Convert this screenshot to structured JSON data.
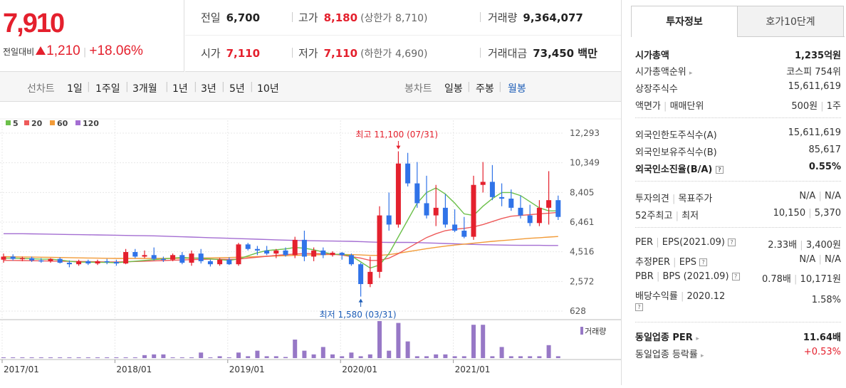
{
  "price": {
    "current": "7,910",
    "change_label": "전일대비",
    "change_abs": "1,210",
    "change_pct": "+18.06%"
  },
  "stats": {
    "prev_close": {
      "label": "전일",
      "value": "6,700"
    },
    "high": {
      "label": "고가",
      "value": "8,180",
      "limit_label": "(상한가",
      "limit_value": "8,710)"
    },
    "volume": {
      "label": "거래량",
      "value": "9,364,077"
    },
    "open": {
      "label": "시가",
      "value": "7,110"
    },
    "low": {
      "label": "저가",
      "value": "7,110",
      "limit_label": "(하한가",
      "limit_value": "4,690)"
    },
    "amount": {
      "label": "거래대금",
      "value": "73,450 백만"
    }
  },
  "periods": {
    "line_label": "선차트",
    "line_items": [
      "1일",
      "1주일",
      "3개월",
      "1년",
      "3년",
      "5년",
      "10년"
    ],
    "candle_label": "봉차트",
    "candle_items": [
      "일봉",
      "주봉",
      "월봉"
    ],
    "selected": "월봉"
  },
  "colors": {
    "up": "#e4202d",
    "down": "#3073e8",
    "volume": "#9778c6",
    "ma5": "#6cc04a",
    "ma20": "#ee5a5a",
    "ma60": "#f29b38",
    "ma120": "#a46ed2"
  },
  "chart_data": {
    "type": "candlestick",
    "legend": [
      {
        "name": "5",
        "color": "#6cc04a"
      },
      {
        "name": "20",
        "color": "#ee5a5a"
      },
      {
        "name": "60",
        "color": "#f29b38"
      },
      {
        "name": "120",
        "color": "#a46ed2"
      }
    ],
    "y_ticks": [
      "12,293",
      "10,349",
      "8,405",
      "6,461",
      "4,516",
      "2,572",
      "628"
    ],
    "y_range": [
      628,
      12293
    ],
    "x_ticks": [
      "2017/01",
      "2018/01",
      "2019/01",
      "2020/01",
      "2021/01"
    ],
    "x_tick_index": [
      0,
      12,
      24,
      36,
      48
    ],
    "annotations": {
      "high": "최고 11,100 (07/31)",
      "low": "최저 1,580 (03/31)"
    },
    "high_index": 42,
    "low_index": 38,
    "volume_label": "거래량",
    "candles": [
      [
        4000,
        4400,
        3800,
        4200
      ],
      [
        4200,
        4350,
        3950,
        4050
      ],
      [
        4050,
        4200,
        3900,
        4100
      ],
      [
        4100,
        4200,
        3850,
        3950
      ],
      [
        3950,
        4100,
        3800,
        3900
      ],
      [
        3900,
        4100,
        3800,
        4050
      ],
      [
        4050,
        4150,
        3750,
        3800
      ],
      [
        3800,
        3950,
        3500,
        3700
      ],
      [
        3700,
        4000,
        3600,
        3900
      ],
      [
        3900,
        4000,
        3650,
        3750
      ],
      [
        3750,
        4000,
        3650,
        3900
      ],
      [
        3900,
        4050,
        3700,
        3850
      ],
      [
        3850,
        4000,
        3600,
        3750
      ],
      [
        3750,
        4700,
        3700,
        4500
      ],
      [
        4500,
        4700,
        4100,
        4200
      ],
      [
        4200,
        4600,
        4100,
        4300
      ],
      [
        4300,
        4800,
        3950,
        4050
      ],
      [
        4050,
        4200,
        3850,
        4000
      ],
      [
        4000,
        4400,
        3900,
        4300
      ],
      [
        4300,
        4500,
        3700,
        3800
      ],
      [
        3800,
        4600,
        3600,
        4400
      ],
      [
        4400,
        4700,
        3750,
        3900
      ],
      [
        3900,
        4000,
        3550,
        3700
      ],
      [
        3700,
        4100,
        3600,
        4000
      ],
      [
        4000,
        4150,
        3650,
        3700
      ],
      [
        3700,
        5100,
        3600,
        5000
      ],
      [
        5000,
        5100,
        4600,
        4700
      ],
      [
        4700,
        4900,
        4300,
        4600
      ],
      [
        4600,
        4900,
        4300,
        4400
      ],
      [
        4400,
        4700,
        4100,
        4600
      ],
      [
        4600,
        4800,
        4200,
        4300
      ],
      [
        4300,
        5500,
        4100,
        5300
      ],
      [
        5300,
        5900,
        3900,
        4200
      ],
      [
        4200,
        4800,
        3900,
        4600
      ],
      [
        4600,
        4800,
        4100,
        4300
      ],
      [
        4300,
        4550,
        4200,
        4450
      ],
      [
        4450,
        4500,
        4000,
        4300
      ],
      [
        4300,
        4400,
        3600,
        3700
      ],
      [
        3700,
        3800,
        1580,
        2400
      ],
      [
        2400,
        4200,
        2200,
        3200
      ],
      [
        3200,
        7500,
        2800,
        6900
      ],
      [
        6900,
        8400,
        5900,
        6300
      ],
      [
        6300,
        11100,
        6100,
        10300
      ],
      [
        10300,
        11000,
        8800,
        9000
      ],
      [
        9000,
        10400,
        7400,
        7700
      ],
      [
        7700,
        9500,
        6700,
        6900
      ],
      [
        6900,
        8900,
        6200,
        7400
      ],
      [
        7400,
        8300,
        6100,
        6300
      ],
      [
        6300,
        7300,
        5800,
        5900
      ],
      [
        5900,
        6800,
        5400,
        5500
      ],
      [
        5500,
        9500,
        5300,
        8900
      ],
      [
        8900,
        10400,
        8400,
        9100
      ],
      [
        9100,
        10200,
        7900,
        8100
      ],
      [
        8100,
        9000,
        7500,
        8000
      ],
      [
        8000,
        8600,
        7200,
        7400
      ],
      [
        7400,
        8200,
        6700,
        6900
      ],
      [
        6900,
        7600,
        6200,
        6400
      ],
      [
        6400,
        7900,
        6200,
        7400
      ],
      [
        7400,
        9800,
        6300,
        7900
      ],
      [
        7900,
        8200,
        6600,
        6800
      ]
    ],
    "ma5": [
      4100,
      4100,
      4080,
      4060,
      4040,
      4030,
      3980,
      3900,
      3840,
      3840,
      3830,
      3820,
      3800,
      3850,
      3900,
      3950,
      4000,
      4050,
      4100,
      4150,
      4100,
      4100,
      4050,
      4000,
      3950,
      4050,
      4250,
      4450,
      4600,
      4650,
      4700,
      4800,
      4750,
      4650,
      4500,
      4350,
      4350,
      4250,
      3850,
      3450,
      3650,
      4400,
      5500,
      6600,
      7700,
      8400,
      8700,
      8300,
      7700,
      7000,
      6900,
      7500,
      8000,
      8400,
      8400,
      8200,
      7800,
      7400,
      7200,
      7200
    ],
    "ma20": [
      3950,
      3950,
      3940,
      3930,
      3920,
      3910,
      3900,
      3890,
      3880,
      3870,
      3860,
      3850,
      3850,
      3860,
      3880,
      3900,
      3920,
      3940,
      3960,
      3980,
      4000,
      4020,
      4030,
      4030,
      4020,
      4040,
      4100,
      4160,
      4220,
      4280,
      4330,
      4370,
      4400,
      4400,
      4380,
      4360,
      4300,
      4200,
      4100,
      3950,
      3950,
      4100,
      4400,
      4750,
      5100,
      5450,
      5700,
      5900,
      6000,
      6050,
      6150,
      6300,
      6500,
      6700,
      6850,
      6900,
      6950,
      7000,
      7050,
      7100
    ],
    "ma60": [
      4200,
      4190,
      4180,
      4170,
      4160,
      4150,
      4140,
      4130,
      4120,
      4110,
      4100,
      4090,
      4080,
      4080,
      4080,
      4080,
      4080,
      4080,
      4080,
      4090,
      4100,
      4110,
      4120,
      4130,
      4140,
      4160,
      4180,
      4200,
      4220,
      4240,
      4260,
      4280,
      4300,
      4320,
      4330,
      4340,
      4340,
      4330,
      4310,
      4280,
      4280,
      4330,
      4420,
      4520,
      4620,
      4720,
      4810,
      4890,
      4960,
      5020,
      5080,
      5140,
      5200,
      5250,
      5300,
      5350,
      5400,
      5440,
      5480,
      5520
    ],
    "ma120": [
      5700,
      5700,
      5700,
      5690,
      5680,
      5670,
      5660,
      5650,
      5640,
      5630,
      5620,
      5610,
      5600,
      5590,
      5580,
      5570,
      5560,
      5540,
      5520,
      5500,
      5480,
      5460,
      5440,
      5420,
      5400,
      5380,
      5360,
      5340,
      5320,
      5300,
      5280,
      5260,
      5250,
      5240,
      5230,
      5220,
      5210,
      5200,
      5180,
      5160,
      5140,
      5130,
      5130,
      5130,
      5120,
      5100,
      5080,
      5060,
      5040,
      5020,
      5000,
      4980,
      4970,
      4960,
      4950,
      4940,
      4940,
      4940,
      4930,
      4930
    ],
    "volume_relative": [
      0.02,
      0.02,
      0.02,
      0.02,
      0.02,
      0.02,
      0.02,
      0.02,
      0.02,
      0.02,
      0.02,
      0.02,
      0.02,
      0.02,
      0.02,
      0.08,
      0.1,
      0.1,
      0.02,
      0.02,
      0.02,
      0.15,
      0.02,
      0.05,
      0.02,
      0.15,
      0.05,
      0.2,
      0.05,
      0.05,
      0.03,
      0.5,
      0.2,
      0.1,
      0.3,
      0.1,
      0.05,
      0.15,
      0.05,
      0.1,
      1.0,
      0.2,
      0.95,
      0.45,
      0.05,
      0.05,
      0.1,
      0.1,
      0.05,
      0.05,
      0.9,
      0.9,
      0.05,
      0.3,
      0.05,
      0.05,
      0.05,
      0.05,
      0.35,
      0.05
    ]
  },
  "tabs": [
    "투자정보",
    "호가10단계"
  ],
  "info": {
    "market_cap": {
      "label": "시가총액",
      "value": "1,235억원"
    },
    "market_cap_rank": {
      "label": "시가총액순위",
      "value": "코스피 754위"
    },
    "shares": {
      "label": "상장주식수",
      "value": "15,611,619"
    },
    "par": {
      "label": "액면가",
      "label2": "매매단위",
      "value": "500원",
      "value2": "1주"
    },
    "foreign_limit": {
      "label": "외국인한도주식수(A)",
      "value": "15,611,619"
    },
    "foreign_hold": {
      "label": "외국인보유주식수(B)",
      "value": "85,617"
    },
    "foreign_ratio": {
      "label": "외국인소진율(B/A)",
      "value": "0.55%"
    },
    "opinion": {
      "label": "투자의견",
      "label2": "목표주가",
      "value": "N/A",
      "value2": "N/A"
    },
    "range52": {
      "label": "52주최고",
      "label2": "최저",
      "value": "10,150",
      "value2": "5,370"
    },
    "per": {
      "label": "PER",
      "label2": "EPS(2021.09)",
      "value": "2.33배",
      "value2": "3,400원"
    },
    "est_per": {
      "label": "추정PER",
      "label2": "EPS",
      "value": "N/A",
      "value2": "N/A"
    },
    "pbr": {
      "label": "PBR",
      "label2": "BPS (2021.09)",
      "value": "0.78배",
      "value2": "10,171원"
    },
    "dividend": {
      "label": "배당수익률",
      "label2": "2020.12",
      "value": "1.58%"
    },
    "sector_per": {
      "label": "동일업종 PER",
      "value": "11.64배"
    },
    "sector_change": {
      "label": "동일업종 등락률",
      "value": "+0.53%"
    }
  }
}
